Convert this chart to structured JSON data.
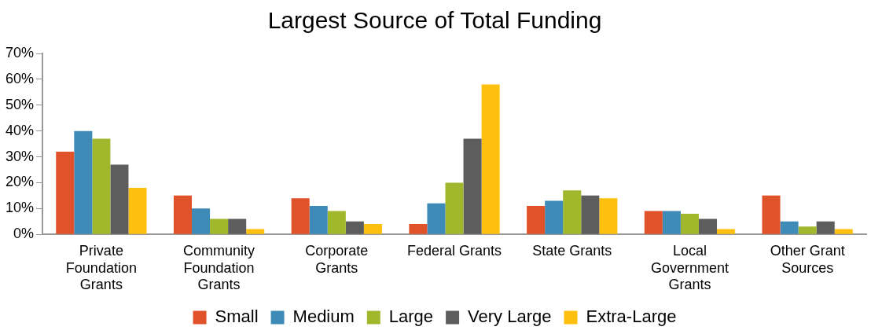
{
  "chart_data": {
    "type": "bar",
    "title": "Largest Source of Total Funding",
    "categories": [
      "Private Foundation Grants",
      "Community Foundation Grants",
      "Corporate Grants",
      "Federal Grants",
      "State Grants",
      "Local Government Grants",
      "Other Grant Sources"
    ],
    "series": [
      {
        "name": "Small",
        "color": "#e0522a",
        "values": [
          32,
          15,
          14,
          4,
          11,
          9,
          15
        ]
      },
      {
        "name": "Medium",
        "color": "#3f8bb8",
        "values": [
          40,
          10,
          11,
          12,
          13,
          9,
          5
        ]
      },
      {
        "name": "Large",
        "color": "#a2b82c",
        "values": [
          37,
          6,
          9,
          20,
          17,
          8,
          3
        ]
      },
      {
        "name": "Very Large",
        "color": "#5d5d5d",
        "values": [
          27,
          6,
          5,
          37,
          15,
          6,
          5
        ]
      },
      {
        "name": "Extra-Large",
        "color": "#fdc00f",
        "values": [
          18,
          2,
          4,
          58,
          14,
          2,
          2
        ]
      }
    ],
    "ylim": [
      0,
      70
    ],
    "yticks": [
      {
        "value": 0,
        "label": "0%"
      },
      {
        "value": 10,
        "label": "10%"
      },
      {
        "value": 20,
        "label": "20%"
      },
      {
        "value": 30,
        "label": "30%"
      },
      {
        "value": 40,
        "label": "40%"
      },
      {
        "value": 50,
        "label": "50%"
      },
      {
        "value": 60,
        "label": "60%"
      },
      {
        "value": 70,
        "label": "70%"
      }
    ],
    "grid": false,
    "legend": "bottom"
  }
}
